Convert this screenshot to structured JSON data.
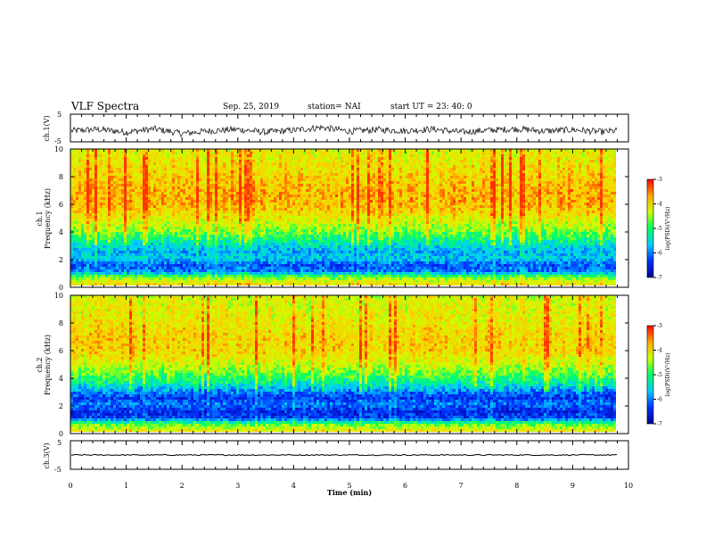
{
  "header": {
    "title": "VLF Spectra",
    "date": "Sep. 25, 2019",
    "station": "station= NAI",
    "start": "start  UT =   23: 40: 0"
  },
  "colors": {
    "spectrogram_ramp": [
      "#0000a0",
      "#0033ff",
      "#00ccff",
      "#00ff66",
      "#ccff00",
      "#ffcc00",
      "#ff3300"
    ],
    "trace": "#000000",
    "axis": "#000000"
  },
  "chart_data": [
    {
      "type": "line",
      "panel": "ch1-waveform",
      "ylabel": "ch.1(V)",
      "ylim": [
        -5,
        5
      ],
      "yticks": [
        "5",
        "-5"
      ],
      "xlim": [
        0,
        10
      ],
      "description_values": "noisy waveform mostly between about -2 and +1 V",
      "series": [
        {
          "values_x": [
            0,
            0.5,
            1,
            1.5,
            2,
            2.5,
            3,
            3.5,
            4,
            4.5,
            5,
            5.5,
            6,
            6.5,
            7,
            7.5,
            8,
            8.5,
            9,
            9.5,
            9.8
          ],
          "values_y": [
            -1,
            -0.5,
            -1.5,
            -0.3,
            -2,
            -1,
            -0.5,
            -1.5,
            -0.8,
            0.2,
            -1.2,
            -0.6,
            -1,
            -0.4,
            -1.5,
            -0.8,
            -0.3,
            -1.1,
            -0.6,
            -1.4,
            -1
          ]
        }
      ]
    },
    {
      "type": "heatmap",
      "panel": "ch1-spectrogram",
      "ylabel": "ch.1\nFrequency (kHz)",
      "ylabel_line1": "ch.1",
      "ylabel_line2": "Frequency (kHz)",
      "ylim": [
        0,
        10
      ],
      "yticks": [
        "0",
        "2",
        "4",
        "6",
        "8",
        "10"
      ],
      "xlim": [
        0,
        10
      ],
      "data_end_min": 9.8,
      "colorbar": {
        "label": "log(PSD)(V²/Hz)",
        "ticks": [
          "-3",
          "-4",
          "-5",
          "-6",
          "-7"
        ],
        "range": [
          -7,
          -3
        ]
      },
      "profile_khz": [
        0,
        0.3,
        0.6,
        1.0,
        1.5,
        2.0,
        2.5,
        3.0,
        3.5,
        4.0,
        5.0,
        6.0,
        7.0,
        8.0,
        9.0,
        10.0
      ],
      "profile_logpsd": [
        -3.8,
        -4.2,
        -4.6,
        -6.0,
        -6.2,
        -5.6,
        -5.8,
        -5.4,
        -5.0,
        -4.6,
        -4.0,
        -3.6,
        -3.6,
        -3.8,
        -4.0,
        -4.1
      ]
    },
    {
      "type": "heatmap",
      "panel": "ch2-spectrogram",
      "ylabel": "ch.2\nFrequency (kHz)",
      "ylabel_line1": "ch.2",
      "ylabel_line2": "Frequency (kHz)",
      "ylim": [
        0,
        10
      ],
      "yticks": [
        "0",
        "2",
        "4",
        "6",
        "8",
        "10"
      ],
      "xlim": [
        0,
        10
      ],
      "data_end_min": 9.8,
      "colorbar": {
        "label": "log(PSD)(V²/Hz)",
        "ticks": [
          "-3",
          "-4",
          "-5",
          "-6",
          "-7"
        ],
        "range": [
          -7,
          -3
        ]
      },
      "profile_khz": [
        0,
        0.3,
        0.6,
        1.0,
        1.5,
        2.0,
        2.5,
        3.0,
        3.5,
        4.0,
        5.0,
        6.0,
        7.0,
        8.0,
        9.0,
        10.0
      ],
      "profile_logpsd": [
        -3.9,
        -4.4,
        -4.8,
        -6.3,
        -6.5,
        -6.0,
        -6.4,
        -5.9,
        -5.3,
        -4.9,
        -4.2,
        -3.8,
        -3.8,
        -4.0,
        -4.1,
        -4.2
      ]
    },
    {
      "type": "line",
      "panel": "ch3-waveform",
      "ylabel": "ch.3(V)",
      "ylim": [
        -5,
        5
      ],
      "yticks": [
        "5",
        "-5"
      ],
      "xlim": [
        0,
        10
      ],
      "series": [
        {
          "values_x": [
            0,
            9.8
          ],
          "values_y": [
            0,
            0
          ]
        }
      ]
    }
  ],
  "xaxis": {
    "label": "Time  (min)",
    "ticks": [
      "0",
      "1",
      "2",
      "3",
      "4",
      "5",
      "6",
      "7",
      "8",
      "9",
      "10"
    ]
  }
}
